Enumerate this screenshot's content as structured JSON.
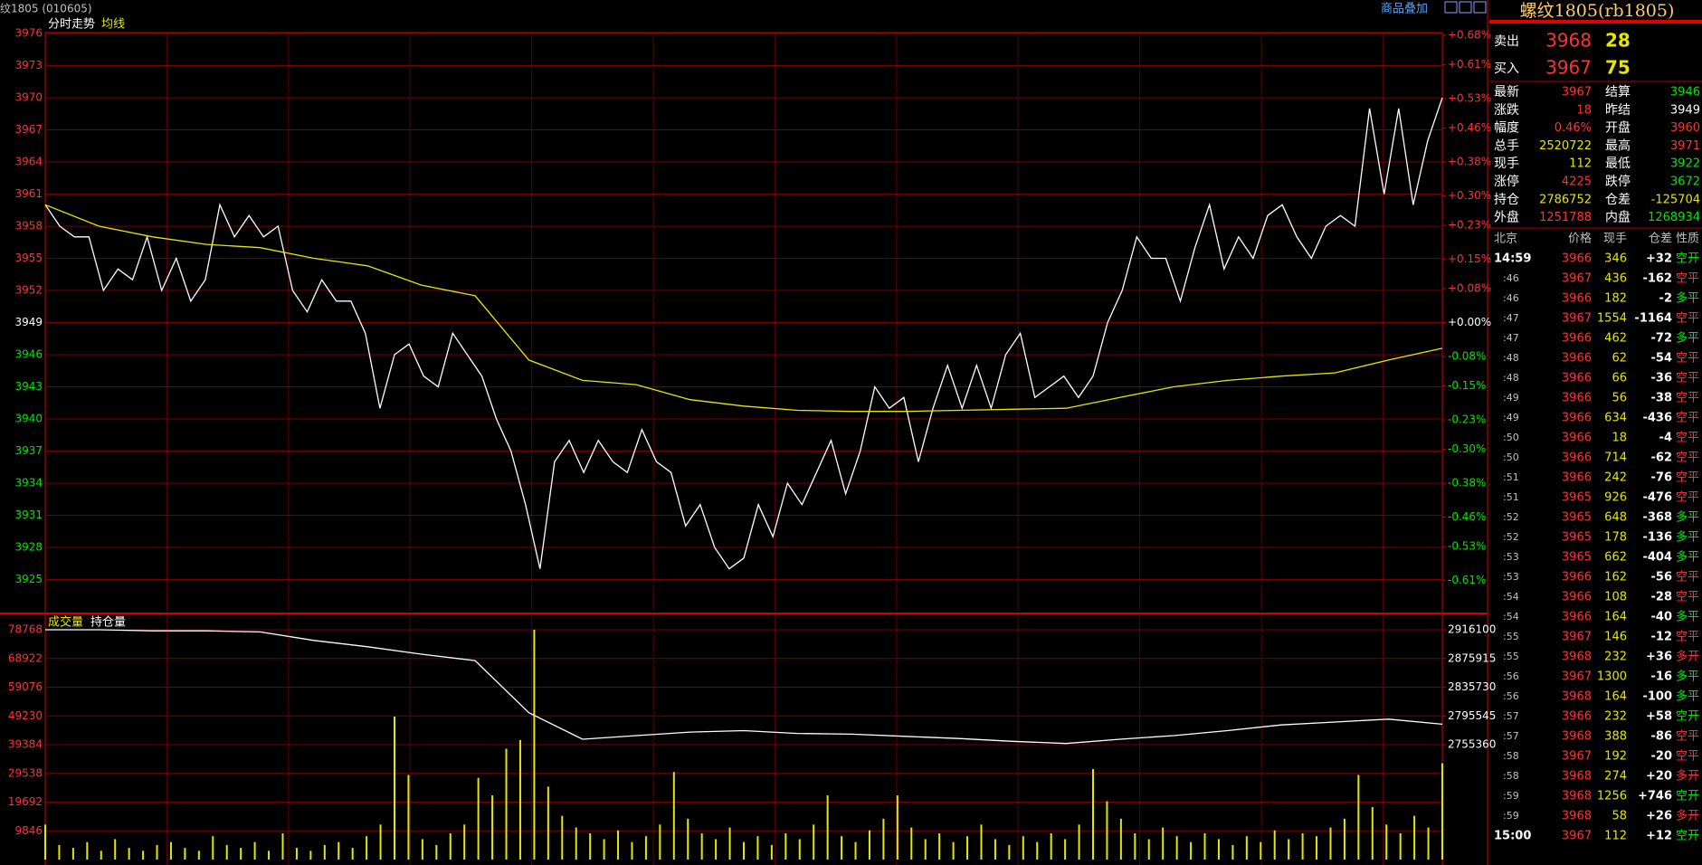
{
  "header": {
    "symbol": "纹1805 (010605)",
    "overlay_button": "商品叠加"
  },
  "chart_data": [
    {
      "type": "line",
      "title": "分时走势",
      "grid": true,
      "ylim": [
        3922,
        3976
      ],
      "yticks": [
        3976,
        3973,
        3970,
        3967,
        3964,
        3961,
        3958,
        3955,
        3952,
        3949,
        3946,
        3943,
        3940,
        3937,
        3934,
        3931,
        3928,
        3925
      ],
      "y2lim": [
        -0.684,
        0.684
      ],
      "y2ticks": [
        {
          "value": 0.68,
          "label": "+0.68%"
        },
        {
          "value": 0.61,
          "label": "+0.61%"
        },
        {
          "value": 0.53,
          "label": "+0.53%"
        },
        {
          "value": 0.46,
          "label": "+0.46%"
        },
        {
          "value": 0.38,
          "label": "+0.38%"
        },
        {
          "value": 0.3,
          "label": "+0.30%"
        },
        {
          "value": 0.23,
          "label": "+0.23%"
        },
        {
          "value": 0.15,
          "label": "+0.15%"
        },
        {
          "value": 0.08,
          "label": "+0.08%"
        },
        {
          "value": 0.0,
          "label": "+0.00%"
        },
        {
          "value": -0.08,
          "label": "-0.08%"
        },
        {
          "value": -0.15,
          "label": "-0.15%"
        },
        {
          "value": -0.23,
          "label": "-0.23%"
        },
        {
          "value": -0.3,
          "label": "-0.30%"
        },
        {
          "value": -0.38,
          "label": "-0.38%"
        },
        {
          "value": -0.46,
          "label": "-0.46%"
        },
        {
          "value": -0.53,
          "label": "-0.53%"
        },
        {
          "value": -0.61,
          "label": "-0.61%"
        }
      ],
      "series": [
        {
          "color": "#ffffff",
          "values": [
            3960,
            3958,
            3957,
            3957,
            3952,
            3954,
            3953,
            3957,
            3952,
            3955,
            3951,
            3953,
            3960,
            3957,
            3959,
            3957,
            3958,
            3952,
            3950,
            3953,
            3951,
            3951,
            3948,
            3941,
            3946,
            3947,
            3944,
            3943,
            3948,
            3946,
            3944,
            3940,
            3937,
            3932,
            3926,
            3936,
            3938,
            3935,
            3938,
            3936,
            3935,
            3939,
            3936,
            3935,
            3930,
            3932,
            3928,
            3926,
            3927,
            3932,
            3929,
            3934,
            3932,
            3935,
            3938,
            3933,
            3937,
            3943,
            3941,
            3942,
            3936,
            3941,
            3945,
            3941,
            3945,
            3941,
            3946,
            3948,
            3942,
            3943,
            3944,
            3942,
            3944,
            3949,
            3952,
            3957,
            3955,
            3955,
            3951,
            3956,
            3960,
            3954,
            3957,
            3955,
            3959,
            3960,
            3957,
            3955,
            3958,
            3959,
            3958,
            3969,
            3961,
            3969,
            3960,
            3966,
            3970
          ]
        },
        {
          "name": "均线",
          "color": "#e6e600",
          "values": [
            3960,
            3958,
            3957,
            3956.3,
            3956,
            3955,
            3954.3,
            3952.5,
            3951.5,
            3945.5,
            3943.6,
            3943.2,
            3941.8,
            3941.2,
            3940.8,
            3940.7,
            3940.7,
            3940.8,
            3940.9,
            3941,
            3942,
            3943,
            3943.6,
            3944,
            3944.3,
            3945.5,
            3946.6
          ]
        }
      ]
    },
    {
      "type": "bar",
      "grid": true,
      "ytick_color": "#ff3232",
      "y2tick_color": "#ffffff",
      "ylim": [
        0,
        78768
      ],
      "yticks": [
        78768,
        68922,
        59076,
        49230,
        39384,
        29538,
        19692,
        9846
      ],
      "y2lim": [
        2594620,
        2916100
      ],
      "y2ticks": [
        2916100,
        2875915,
        2835730,
        2795545,
        2755360
      ],
      "series": [
        {
          "name": "成交量",
          "color": "#e6e600",
          "values": [
            12000,
            5000,
            4000,
            6000,
            3000,
            7000,
            4000,
            3000,
            5000,
            6000,
            4000,
            3000,
            8000,
            5000,
            4000,
            6000,
            3000,
            9000,
            4000,
            3000,
            5000,
            6000,
            4000,
            8000,
            12000,
            49000,
            29000,
            7000,
            5000,
            9000,
            12000,
            28000,
            22000,
            38000,
            41000,
            78768,
            25000,
            15000,
            11000,
            9000,
            7000,
            10000,
            6000,
            8000,
            12000,
            30000,
            14000,
            9000,
            7000,
            11000,
            6000,
            8000,
            5000,
            9000,
            7000,
            12000,
            22000,
            8000,
            6000,
            10000,
            14000,
            22000,
            11000,
            7000,
            9000,
            6000,
            8000,
            12000,
            7000,
            5000,
            8000,
            6000,
            9000,
            7000,
            12000,
            31000,
            20000,
            14000,
            9000,
            7000,
            11000,
            8000,
            6000,
            9000,
            7000,
            5000,
            8000,
            6000,
            10000,
            7000,
            9000,
            8000,
            11000,
            14000,
            29000,
            18000,
            12000,
            9000,
            15000,
            11000,
            33000
          ]
        },
        {
          "name": "持仓量",
          "color": "#ffffff",
          "type": "line",
          "axis": "y2",
          "values": [
            2916100,
            2916100,
            2914600,
            2914600,
            2913100,
            2901200,
            2892300,
            2881900,
            2873000,
            2800000,
            2763000,
            2768000,
            2773000,
            2775000,
            2771000,
            2770000,
            2767000,
            2764000,
            2760000,
            2757000,
            2763000,
            2768000,
            2775000,
            2783000,
            2787000,
            2791000,
            2784000
          ]
        }
      ]
    }
  ],
  "quote": {
    "title": "螺纹1805(rb1805)",
    "ask": {
      "label": "卖出",
      "price": 3968,
      "volume": 28
    },
    "bid": {
      "label": "买入",
      "price": 3967,
      "volume": 75
    },
    "stats": [
      {
        "label": "最新",
        "value": 3967,
        "color": "#ff3232"
      },
      {
        "label": "结算",
        "value": 3946,
        "color": "#00e600"
      },
      {
        "label": "涨跌",
        "value": 18,
        "color": "#ff3232"
      },
      {
        "label": "昨结",
        "value": 3949,
        "color": "#ffffff"
      },
      {
        "label": "幅度",
        "value": "0.46%",
        "color": "#ff3232"
      },
      {
        "label": "开盘",
        "value": 3960,
        "color": "#ff3232"
      },
      {
        "label": "总手",
        "value": 2520722,
        "color": "#e6e600"
      },
      {
        "label": "最高",
        "value": 3971,
        "color": "#ff3232"
      },
      {
        "label": "现手",
        "value": 112,
        "color": "#e6e600"
      },
      {
        "label": "最低",
        "value": 3922,
        "color": "#00e600"
      },
      {
        "label": "涨停",
        "value": 4225,
        "color": "#ff3232"
      },
      {
        "label": "跌停",
        "value": 3672,
        "color": "#00e600"
      },
      {
        "label": "持仓",
        "value": 2786752,
        "color": "#e6e600"
      },
      {
        "label": "仓差",
        "value": -125704,
        "color": "#e6e600"
      },
      {
        "label": "外盘",
        "value": 1251788,
        "color": "#ff3232"
      },
      {
        "label": "内盘",
        "value": 1268934,
        "color": "#00e600"
      }
    ],
    "ticks_header": [
      "北京",
      "价格",
      "现手",
      "仓差",
      "性质"
    ],
    "ticks": [
      {
        "time": "14:59",
        "price": 3966,
        "volume": 346,
        "oi_change": "+32",
        "nature": "空开",
        "nature_color": "#00e600"
      },
      {
        "time": ":46",
        "price": 3967,
        "volume": 436,
        "oi_change": "-162",
        "nature": "空平",
        "nature_color": "#ff3232"
      },
      {
        "time": ":46",
        "price": 3966,
        "volume": 182,
        "oi_change": "-2",
        "nature": "多平",
        "nature_color": "#00e600"
      },
      {
        "time": ":47",
        "price": 3967,
        "volume": 1554,
        "oi_change": "-1164",
        "nature": "空平",
        "nature_color": "#ff3232"
      },
      {
        "time": ":47",
        "price": 3966,
        "volume": 462,
        "oi_change": "-72",
        "nature": "多平",
        "nature_color": "#00e600"
      },
      {
        "time": ":48",
        "price": 3966,
        "volume": 62,
        "oi_change": "-54",
        "nature": "空平",
        "nature_color": "#ff3232"
      },
      {
        "time": ":48",
        "price": 3966,
        "volume": 66,
        "oi_change": "-36",
        "nature": "空平",
        "nature_color": "#ff3232"
      },
      {
        "time": ":49",
        "price": 3966,
        "volume": 56,
        "oi_change": "-38",
        "nature": "空平",
        "nature_color": "#ff3232"
      },
      {
        "time": ":49",
        "price": 3966,
        "volume": 634,
        "oi_change": "-436",
        "nature": "空平",
        "nature_color": "#ff3232"
      },
      {
        "time": ":50",
        "price": 3966,
        "volume": 18,
        "oi_change": "-4",
        "nature": "空平",
        "nature_color": "#ff3232"
      },
      {
        "time": ":50",
        "price": 3966,
        "volume": 714,
        "oi_change": "-62",
        "nature": "空平",
        "nature_color": "#ff3232"
      },
      {
        "time": ":51",
        "price": 3966,
        "volume": 242,
        "oi_change": "-76",
        "nature": "空平",
        "nature_color": "#ff3232"
      },
      {
        "time": ":51",
        "price": 3965,
        "volume": 926,
        "oi_change": "-476",
        "nature": "空平",
        "nature_color": "#ff3232"
      },
      {
        "time": ":52",
        "price": 3965,
        "volume": 648,
        "oi_change": "-368",
        "nature": "多平",
        "nature_color": "#00e600"
      },
      {
        "time": ":52",
        "price": 3965,
        "volume": 178,
        "oi_change": "-136",
        "nature": "多平",
        "nature_color": "#00e600"
      },
      {
        "time": ":53",
        "price": 3965,
        "volume": 662,
        "oi_change": "-404",
        "nature": "多平",
        "nature_color": "#00e600"
      },
      {
        "time": ":53",
        "price": 3966,
        "volume": 162,
        "oi_change": "-56",
        "nature": "空平",
        "nature_color": "#ff3232"
      },
      {
        "time": ":54",
        "price": 3966,
        "volume": 108,
        "oi_change": "-28",
        "nature": "空平",
        "nature_color": "#ff3232"
      },
      {
        "time": ":54",
        "price": 3966,
        "volume": 164,
        "oi_change": "-40",
        "nature": "多平",
        "nature_color": "#00e600"
      },
      {
        "time": ":55",
        "price": 3967,
        "volume": 146,
        "oi_change": "-12",
        "nature": "空平",
        "nature_color": "#ff3232"
      },
      {
        "time": ":55",
        "price": 3968,
        "volume": 232,
        "oi_change": "+36",
        "nature": "多开",
        "nature_color": "#ff3232"
      },
      {
        "time": ":56",
        "price": 3967,
        "volume": 1300,
        "oi_change": "-16",
        "nature": "多平",
        "nature_color": "#00e600"
      },
      {
        "time": ":56",
        "price": 3968,
        "volume": 164,
        "oi_change": "-100",
        "nature": "多平",
        "nature_color": "#00e600"
      },
      {
        "time": ":57",
        "price": 3966,
        "volume": 232,
        "oi_change": "+58",
        "nature": "空开",
        "nature_color": "#00e600"
      },
      {
        "time": ":57",
        "price": 3968,
        "volume": 388,
        "oi_change": "-86",
        "nature": "空平",
        "nature_color": "#ff3232"
      },
      {
        "time": ":58",
        "price": 3967,
        "volume": 192,
        "oi_change": "-20",
        "nature": "空平",
        "nature_color": "#ff3232"
      },
      {
        "time": ":58",
        "price": 3968,
        "volume": 274,
        "oi_change": "+20",
        "nature": "多开",
        "nature_color": "#ff3232"
      },
      {
        "time": ":59",
        "price": 3968,
        "volume": 1256,
        "oi_change": "+746",
        "nature": "空开",
        "nature_color": "#00e600"
      },
      {
        "time": ":59",
        "price": 3968,
        "volume": 58,
        "oi_change": "+26",
        "nature": "多开",
        "nature_color": "#ff3232"
      },
      {
        "time": "15:00",
        "price": 3967,
        "volume": 112,
        "oi_change": "+12",
        "nature": "空开",
        "nature_color": "#00e600"
      }
    ]
  }
}
